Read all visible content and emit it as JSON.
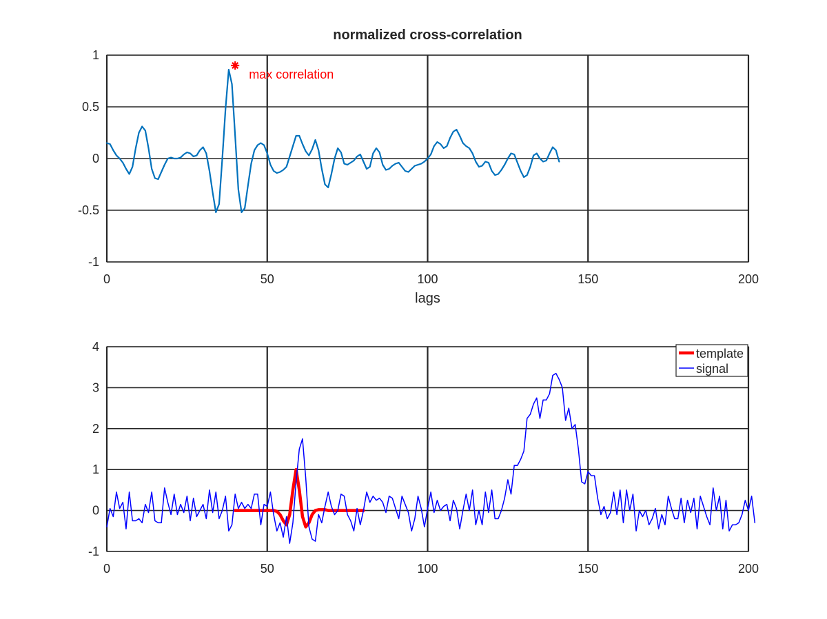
{
  "chart_data": [
    {
      "type": "line",
      "title": "normalized cross-correlation",
      "xlabel": "lags",
      "ylabel": "",
      "xlim": [
        0,
        200
      ],
      "ylim": [
        -1,
        1
      ],
      "xticks": [
        0,
        50,
        100,
        150,
        200
      ],
      "yticks": [
        -1,
        -0.5,
        0,
        0.5,
        1
      ],
      "grid": true,
      "series": [
        {
          "color": "#0072bd",
          "x_start": 0,
          "values": [
            0.15,
            0.14,
            0.08,
            0.03,
            0.0,
            -0.04,
            -0.1,
            -0.15,
            -0.08,
            0.1,
            0.25,
            0.31,
            0.27,
            0.1,
            -0.1,
            -0.19,
            -0.2,
            -0.13,
            -0.06,
            0.0,
            0.01,
            0.0,
            0.0,
            0.01,
            0.04,
            0.06,
            0.05,
            0.02,
            0.03,
            0.08,
            0.11,
            0.05,
            -0.12,
            -0.33,
            -0.52,
            -0.44,
            0.0,
            0.48,
            0.86,
            0.72,
            0.22,
            -0.3,
            -0.52,
            -0.48,
            -0.26,
            -0.05,
            0.08,
            0.13,
            0.15,
            0.13,
            0.05,
            -0.06,
            -0.12,
            -0.14,
            -0.13,
            -0.11,
            -0.08,
            0.02,
            0.12,
            0.22,
            0.22,
            0.14,
            0.07,
            0.03,
            0.09,
            0.18,
            0.08,
            -0.1,
            -0.25,
            -0.28,
            -0.15,
            0.0,
            0.1,
            0.06,
            -0.05,
            -0.06,
            -0.04,
            -0.02,
            0.02,
            0.04,
            -0.03,
            -0.1,
            -0.08,
            0.05,
            0.1,
            0.06,
            -0.06,
            -0.11,
            -0.1,
            -0.07,
            -0.05,
            -0.04,
            -0.08,
            -0.12,
            -0.13,
            -0.1,
            -0.07,
            -0.06,
            -0.05,
            -0.03,
            0.0,
            0.04,
            0.12,
            0.16,
            0.14,
            0.1,
            0.12,
            0.2,
            0.26,
            0.28,
            0.22,
            0.15,
            0.12,
            0.1,
            0.05,
            -0.03,
            -0.08,
            -0.07,
            -0.03,
            -0.04,
            -0.12,
            -0.16,
            -0.15,
            -0.11,
            -0.06,
            0.0,
            0.05,
            0.04,
            -0.04,
            -0.12,
            -0.18,
            -0.16,
            -0.08,
            0.03,
            0.05,
            0.0,
            -0.03,
            -0.02,
            0.05,
            0.11,
            0.08,
            -0.03
          ]
        }
      ],
      "annotations": [
        {
          "text": "max correlation",
          "x": 40,
          "y": 0.9,
          "color": "#ff0000",
          "marker": "asterisk"
        }
      ]
    },
    {
      "type": "line",
      "xlim": [
        0,
        200
      ],
      "ylim": [
        -1,
        4
      ],
      "xticks": [
        0,
        50,
        100,
        150,
        200
      ],
      "yticks": [
        -1,
        0,
        1,
        2,
        3,
        4
      ],
      "grid": true,
      "legend": "top-right",
      "series": [
        {
          "name": "template",
          "color": "#ff0000",
          "x_start": 40,
          "values": [
            0,
            0,
            0,
            0,
            0,
            0,
            0,
            0,
            0,
            0,
            0,
            0,
            0,
            -0.02,
            -0.1,
            -0.25,
            -0.35,
            -0.1,
            0.5,
            1.0,
            0.5,
            -0.15,
            -0.4,
            -0.3,
            -0.1,
            0,
            0.02,
            0.02,
            0.02,
            0,
            0,
            0,
            0,
            0,
            0,
            0,
            0,
            0,
            0,
            0,
            0
          ]
        },
        {
          "name": "signal",
          "color": "#0000ff",
          "x_start": 0,
          "values": [
            -0.4,
            0.05,
            -0.15,
            0.45,
            0.05,
            0.2,
            -0.45,
            0.45,
            -0.25,
            -0.25,
            -0.2,
            -0.3,
            0.15,
            -0.05,
            0.45,
            -0.25,
            -0.3,
            -0.3,
            0.55,
            0.2,
            -0.1,
            0.4,
            -0.1,
            0.15,
            -0.05,
            0.35,
            -0.25,
            0.3,
            -0.15,
            0.0,
            0.15,
            -0.2,
            0.5,
            -0.05,
            0.45,
            -0.2,
            0.0,
            0.35,
            -0.5,
            -0.35,
            0.4,
            0.05,
            0.2,
            0.05,
            0.15,
            0.05,
            0.4,
            0.4,
            -0.35,
            0.15,
            0.1,
            0.45,
            -0.1,
            -0.5,
            -0.3,
            -0.65,
            -0.15,
            -0.8,
            -0.3,
            0.7,
            1.5,
            1.75,
            0.8,
            -0.4,
            -0.7,
            -0.75,
            -0.1,
            -0.3,
            0.1,
            0.45,
            0.1,
            -0.1,
            0.0,
            0.4,
            0.35,
            -0.1,
            -0.25,
            -0.5,
            0.05,
            -0.35,
            0.0,
            0.45,
            0.2,
            0.35,
            0.25,
            0.3,
            0.2,
            -0.05,
            0.35,
            0.3,
            0.05,
            -0.2,
            0.35,
            0.15,
            -0.05,
            -0.5,
            -0.2,
            0.35,
            0.05,
            -0.4,
            0.05,
            0.45,
            -0.05,
            0.25,
            0.0,
            0.1,
            0.15,
            -0.25,
            0.25,
            0.05,
            -0.45,
            0.0,
            0.4,
            0.0,
            0.5,
            -0.35,
            0.0,
            -0.35,
            0.45,
            -0.05,
            0.5,
            -0.2,
            -0.2,
            0.0,
            0.3,
            0.75,
            0.4,
            1.1,
            1.1,
            1.25,
            1.45,
            2.25,
            2.35,
            2.6,
            2.75,
            2.25,
            2.7,
            2.7,
            2.85,
            3.3,
            3.35,
            3.2,
            3.0,
            2.2,
            2.5,
            2.0,
            2.1,
            1.5,
            0.7,
            0.65,
            0.95,
            0.85,
            0.85,
            0.3,
            -0.1,
            0.1,
            -0.2,
            -0.05,
            0.45,
            -0.1,
            0.5,
            -0.3,
            0.5,
            0.0,
            0.4,
            -0.5,
            0.0,
            -0.15,
            0.0,
            -0.35,
            -0.2,
            0.05,
            -0.45,
            -0.1,
            -0.35,
            0.35,
            0.05,
            -0.2,
            -0.2,
            0.3,
            -0.3,
            0.25,
            -0.05,
            0.3,
            -0.45,
            0.35,
            0.1,
            -0.15,
            -0.35,
            0.55,
            0.0,
            0.35,
            -0.45,
            0.25,
            -0.5,
            -0.35,
            -0.35,
            -0.3,
            -0.1,
            0.25,
            0.0,
            0.35,
            -0.3
          ]
        }
      ]
    }
  ]
}
